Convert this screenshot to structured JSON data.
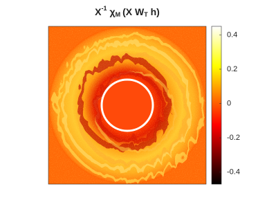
{
  "chart_data": {
    "type": "heatmap",
    "title": [
      "X",
      "-1",
      "χ",
      "M",
      "(X W",
      "T",
      " h)"
    ],
    "colormap": "hot",
    "clim": [
      -0.47,
      0.45
    ],
    "cticks": [
      -0.4,
      -0.2,
      0,
      0.2,
      0.4
    ]
  }
}
